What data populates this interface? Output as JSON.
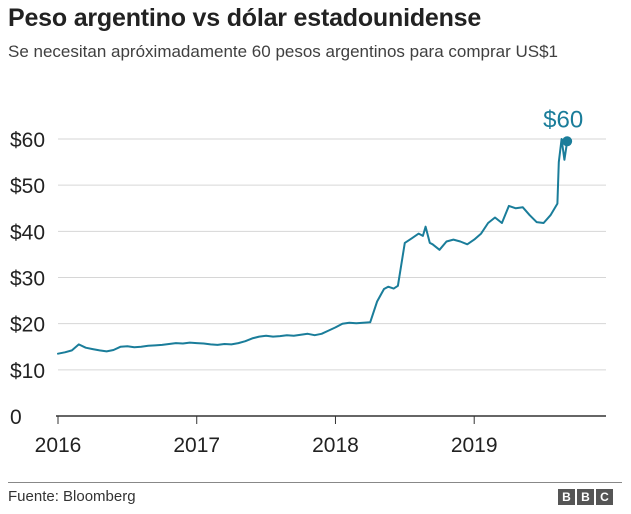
{
  "header": {
    "title": "Peso argentino vs dólar estadounidense",
    "subtitle": "Se necesitan apróximadamente 60 pesos argentinos para comprar US$1"
  },
  "footer": {
    "source": "Fuente: Bloomberg",
    "logo": [
      "B",
      "B",
      "C"
    ]
  },
  "colors": {
    "line": "#1a7d9a",
    "grid": "#d6d6d6",
    "axis": "#333333"
  },
  "chart_data": {
    "type": "line",
    "title": "Peso argentino vs dólar estadounidense",
    "xlabel": "",
    "ylabel": "",
    "xlim": [
      2016.0,
      2019.95
    ],
    "ylim": [
      0,
      60
    ],
    "y_ticks": [
      0,
      10,
      20,
      30,
      40,
      50,
      60
    ],
    "y_tick_labels": [
      "0",
      "$10",
      "$20",
      "$30",
      "$40",
      "$50",
      "$60"
    ],
    "x_ticks": [
      2016,
      2017,
      2018,
      2019
    ],
    "x_tick_labels": [
      "2016",
      "2017",
      "2018",
      "2019"
    ],
    "grid": true,
    "annotation": {
      "label": "$60",
      "x": 2019.67,
      "y": 59.5
    },
    "series": [
      {
        "x": [
          2016.0,
          2016.05,
          2016.1,
          2016.15,
          2016.2,
          2016.25,
          2016.3,
          2016.35,
          2016.4,
          2016.45,
          2016.5,
          2016.55,
          2016.6,
          2016.65,
          2016.7,
          2016.75,
          2016.8,
          2016.85,
          2016.9,
          2016.95,
          2017.0,
          2017.05,
          2017.1,
          2017.15,
          2017.2,
          2017.25,
          2017.3,
          2017.35,
          2017.4,
          2017.45,
          2017.5,
          2017.55,
          2017.6,
          2017.65,
          2017.7,
          2017.75,
          2017.8,
          2017.85,
          2017.9,
          2017.95,
          2018.0,
          2018.05,
          2018.1,
          2018.15,
          2018.2,
          2018.25,
          2018.3,
          2018.35,
          2018.38,
          2018.42,
          2018.45,
          2018.5,
          2018.55,
          2018.6,
          2018.63,
          2018.65,
          2018.68,
          2018.7,
          2018.75,
          2018.8,
          2018.85,
          2018.9,
          2018.95,
          2019.0,
          2019.05,
          2019.1,
          2019.15,
          2019.2,
          2019.25,
          2019.3,
          2019.35,
          2019.4,
          2019.45,
          2019.5,
          2019.55,
          2019.6,
          2019.61,
          2019.63,
          2019.65,
          2019.67
        ],
        "values": [
          13.5,
          13.8,
          14.2,
          15.5,
          14.8,
          14.5,
          14.2,
          14.0,
          14.3,
          15.0,
          15.1,
          14.9,
          15.0,
          15.2,
          15.3,
          15.4,
          15.6,
          15.8,
          15.7,
          15.9,
          15.8,
          15.7,
          15.5,
          15.4,
          15.6,
          15.5,
          15.8,
          16.2,
          16.8,
          17.2,
          17.4,
          17.2,
          17.3,
          17.5,
          17.4,
          17.6,
          17.8,
          17.5,
          17.8,
          18.5,
          19.2,
          20.0,
          20.2,
          20.1,
          20.2,
          20.3,
          24.8,
          27.5,
          28.0,
          27.6,
          28.2,
          37.5,
          38.5,
          39.5,
          39.0,
          41.0,
          37.5,
          37.2,
          36.0,
          37.8,
          38.2,
          37.8,
          37.2,
          38.2,
          39.5,
          41.8,
          43.0,
          41.8,
          45.5,
          45.0,
          45.2,
          43.5,
          42.0,
          41.8,
          43.5,
          46.0,
          55.0,
          60.0,
          55.5,
          59.5
        ]
      }
    ]
  }
}
